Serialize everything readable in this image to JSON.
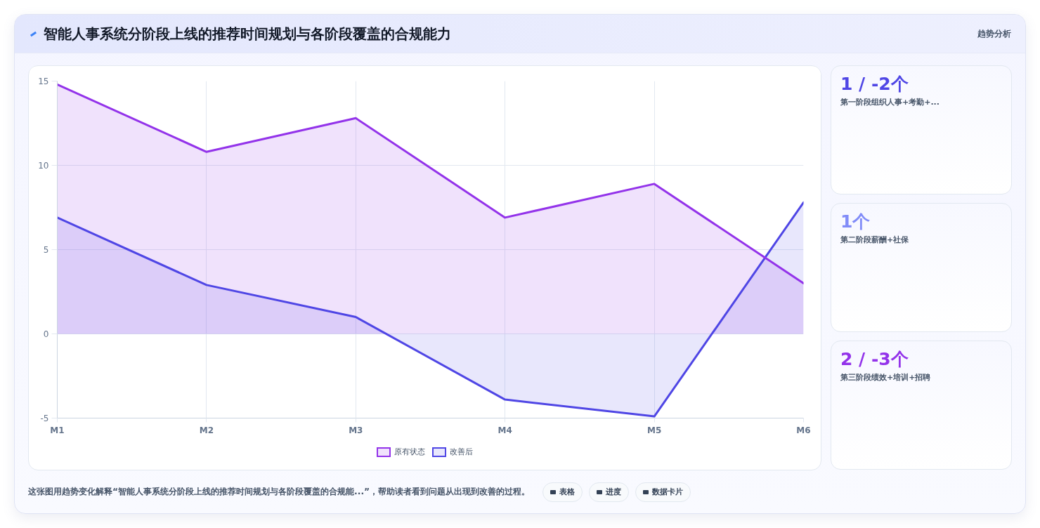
{
  "chart_data": [
    {
      "type": "area",
      "title": "智能人事系统分阶段上线的推荐时间规划与各阶段覆盖的合规能力",
      "categories": [
        "M1",
        "M2",
        "M3",
        "M4",
        "M5",
        "M6"
      ],
      "series": [
        {
          "name": "原有状态",
          "color": "#9333ea",
          "values": [
            14.8,
            10.8,
            12.8,
            6.9,
            8.9,
            3.0
          ]
        },
        {
          "name": "改善后",
          "color": "#4f46e5",
          "values": [
            6.9,
            2.9,
            1.0,
            -3.9,
            -4.9,
            7.8
          ]
        }
      ],
      "ylim": [
        -5,
        15
      ],
      "yticks": [
        -5,
        0,
        5,
        10,
        15
      ],
      "grid": true,
      "legend": "bottom",
      "annotations": [
        "趋势分析",
        "这张图用趋势变化解释“智能人事系统分阶段上线的推荐时间规划与各阶段覆盖的合规能...”，帮助读者看到问题从出现到改善的过程。",
        "表格",
        "进度",
        "数据卡片"
      ]
    },
    {
      "type": "other",
      "annotations": [
        "1 / -2个",
        "第一阶段组织人事+考勤+...",
        "1个",
        "第二阶段薪酬+社保",
        "2 / -3个",
        "第三阶段绩效+培训+招聘"
      ]
    }
  ]
}
